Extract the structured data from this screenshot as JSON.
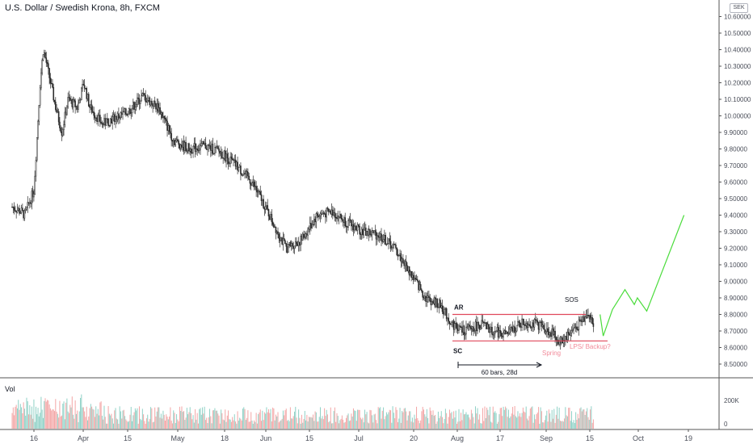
{
  "header": {
    "title": "U.S. Dollar / Swedish Krona, 8h, FXCM",
    "currency_badge": "SEK"
  },
  "volume_pane": {
    "label": "Vol",
    "axis_labels": [
      "200K",
      "0"
    ]
  },
  "annotations": {
    "ar": "AR",
    "sc": "SC",
    "sos": "SOS",
    "spring": "Spring",
    "lps": "LPS/ Backup?",
    "range_measure": "60 bars, 28d"
  },
  "colors": {
    "candle": "#2b2b2b",
    "range_lines": "#e0475a",
    "spring_text": "#f28b9a",
    "projection": "#4bdc3c",
    "volume_up": "#8fd1c6",
    "volume_down": "#f3a6a6",
    "grid": "#e6e6e6"
  },
  "chart_data": [
    {
      "type": "line",
      "subtype": "candlestick",
      "symbol": "USD/SEK",
      "timeframe": "8h",
      "source": "FXCM",
      "x_tick_labels": [
        "16",
        "Apr",
        "15",
        "May",
        "18",
        "Jun",
        "15",
        "Jul",
        "20",
        "Aug",
        "17",
        "Sep",
        "15",
        "Oct",
        "19"
      ],
      "y_tick_labels": [
        "8.50000",
        "8.60000",
        "8.70000",
        "8.80000",
        "8.90000",
        "9.00000",
        "9.10000",
        "9.20000",
        "9.30000",
        "9.40000",
        "9.50000",
        "9.60000",
        "9.70000",
        "9.80000",
        "9.90000",
        "10.00000",
        "10.10000",
        "10.20000",
        "10.30000",
        "10.40000",
        "10.50000",
        "10.60000"
      ],
      "ylim": [
        8.4545,
        10.6475
      ],
      "close_path": [
        [
          "2020-03-09",
          9.45
        ],
        [
          "2020-03-12",
          9.42
        ],
        [
          "2020-03-13",
          9.4
        ],
        [
          "2020-03-16",
          9.55
        ],
        [
          "2020-03-18",
          10.2
        ],
        [
          "2020-03-19",
          10.4
        ],
        [
          "2020-03-20",
          10.32
        ],
        [
          "2020-03-23",
          10.05
        ],
        [
          "2020-03-25",
          9.9
        ],
        [
          "2020-03-27",
          10.1
        ],
        [
          "2020-03-30",
          10.05
        ],
        [
          "2020-04-01",
          10.2
        ],
        [
          "2020-04-03",
          10.05
        ],
        [
          "2020-04-07",
          9.95
        ],
        [
          "2020-04-10",
          9.98
        ],
        [
          "2020-04-15",
          10.02
        ],
        [
          "2020-04-20",
          10.12
        ],
        [
          "2020-04-25",
          10.05
        ],
        [
          "2020-04-30",
          9.85
        ],
        [
          "2020-05-05",
          9.8
        ],
        [
          "2020-05-10",
          9.82
        ],
        [
          "2020-05-15",
          9.78
        ],
        [
          "2020-05-20",
          9.7
        ],
        [
          "2020-05-25",
          9.6
        ],
        [
          "2020-05-28",
          9.5
        ],
        [
          "2020-06-01",
          9.35
        ],
        [
          "2020-06-05",
          9.2
        ],
        [
          "2020-06-10",
          9.25
        ],
        [
          "2020-06-15",
          9.4
        ],
        [
          "2020-06-20",
          9.42
        ],
        [
          "2020-06-25",
          9.35
        ],
        [
          "2020-06-30",
          9.3
        ],
        [
          "2020-07-05",
          9.28
        ],
        [
          "2020-07-10",
          9.2
        ],
        [
          "2020-07-15",
          9.05
        ],
        [
          "2020-07-20",
          8.9
        ],
        [
          "2020-07-25",
          8.85
        ],
        [
          "2020-07-28",
          8.75
        ],
        [
          "2020-08-01",
          8.7
        ],
        [
          "2020-08-07",
          8.74
        ],
        [
          "2020-08-10",
          8.7
        ],
        [
          "2020-08-15",
          8.68
        ],
        [
          "2020-08-20",
          8.75
        ],
        [
          "2020-08-25",
          8.74
        ],
        [
          "2020-08-30",
          8.68
        ],
        [
          "2020-09-01",
          8.63
        ],
        [
          "2020-09-05",
          8.7
        ],
        [
          "2020-09-09",
          8.78
        ],
        [
          "2020-09-10",
          8.82
        ],
        [
          "2020-09-12",
          8.72
        ]
      ],
      "levels": {
        "ar_resistance": 8.8,
        "sc_support": 8.64
      },
      "range_bars": 60,
      "range_days": 28,
      "projection": [
        [
          "2020-09-14",
          8.8
        ],
        [
          "2020-09-15",
          8.67
        ],
        [
          "2020-09-18",
          8.83
        ],
        [
          "2020-09-22",
          8.95
        ],
        [
          "2020-09-25",
          8.86
        ],
        [
          "2020-09-26",
          8.9
        ],
        [
          "2020-09-29",
          8.82
        ],
        [
          "2020-10-11",
          9.4
        ]
      ]
    },
    {
      "type": "bar",
      "title": "Vol",
      "y_tick_labels": [
        "200K",
        "0"
      ]
    }
  ]
}
